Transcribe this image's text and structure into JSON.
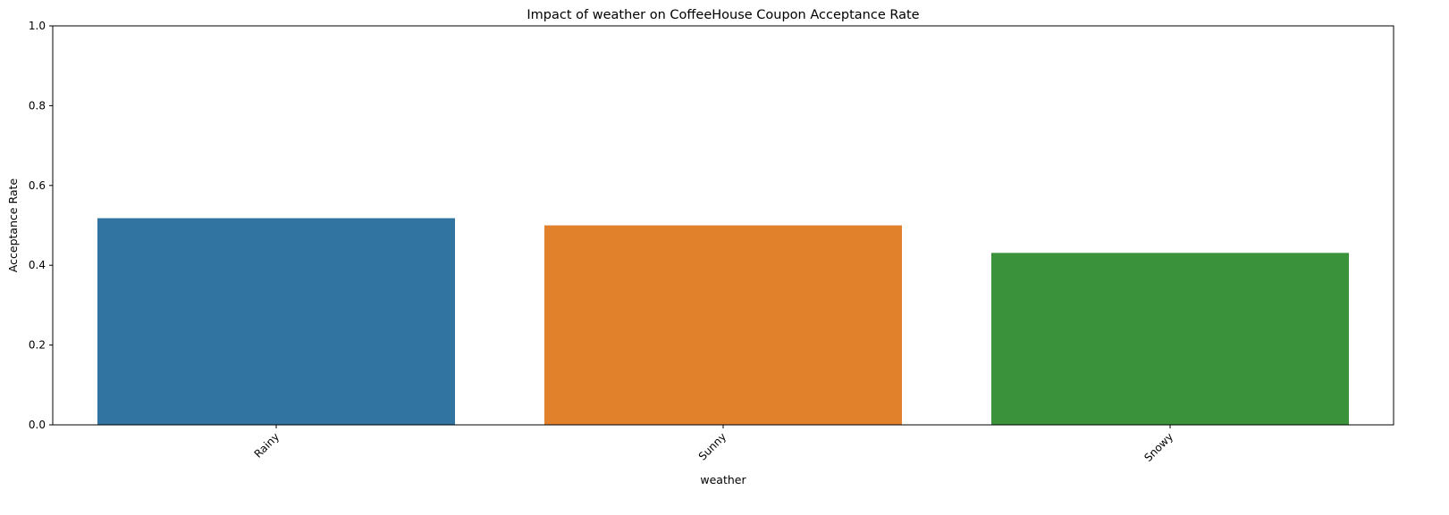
{
  "chart_data": {
    "type": "bar",
    "title": "Impact of weather on CoffeeHouse Coupon Acceptance Rate",
    "xlabel": "weather",
    "ylabel": "Acceptance Rate",
    "categories": [
      "Rainy",
      "Sunny",
      "Snowy"
    ],
    "values": [
      0.518,
      0.5,
      0.431
    ],
    "colors": [
      "#3274a1",
      "#e1812c",
      "#3a923a"
    ],
    "ylim": [
      0,
      1
    ],
    "yticks": [
      0.0,
      0.2,
      0.4,
      0.6,
      0.8,
      1.0
    ],
    "ytick_labels": [
      "0.0",
      "0.2",
      "0.4",
      "0.6",
      "0.8",
      "1.0"
    ],
    "xtick_rotation": 45,
    "grid": false,
    "legend": "none"
  }
}
